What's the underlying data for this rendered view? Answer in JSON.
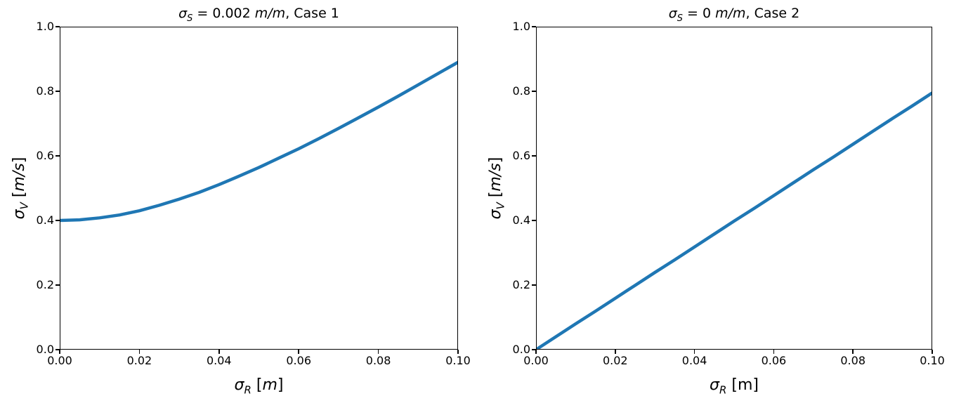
{
  "figure": {
    "background": "#ffffff",
    "axis_color": "#000000",
    "text_color": "#000000"
  },
  "chart_data": [
    {
      "type": "line",
      "title": "σ_S = 0.002 m/m, Case 1",
      "title_parts": [
        {
          "t": "σ",
          "i": true
        },
        {
          "t": "S",
          "i": true,
          "sub": true
        },
        {
          "t": " = 0.002 ",
          "i": false
        },
        {
          "t": "m/m",
          "i": true
        },
        {
          "t": ", Case 1",
          "i": false
        }
      ],
      "xlabel": "σ_R [m]",
      "xlabel_parts": [
        {
          "t": "σ",
          "i": true
        },
        {
          "t": "R",
          "i": true,
          "sub": true
        },
        {
          "t": " [",
          "i": false
        },
        {
          "t": "m",
          "i": true
        },
        {
          "t": "]",
          "i": false
        }
      ],
      "ylabel": "σ_V [m/s]",
      "ylabel_parts": [
        {
          "t": "σ",
          "i": true
        },
        {
          "t": "V",
          "i": true,
          "sub": true
        },
        {
          "t": " [",
          "i": false
        },
        {
          "t": "m/s",
          "i": true
        },
        {
          "t": "]",
          "i": false
        }
      ],
      "xlim": [
        0,
        0.1
      ],
      "ylim": [
        0,
        1.0
      ],
      "xticks": {
        "values": [
          0,
          0.02,
          0.04,
          0.06,
          0.08,
          0.1
        ],
        "labels": [
          "0.00",
          "0.02",
          "0.04",
          "0.06",
          "0.08",
          "0.10"
        ]
      },
      "yticks": {
        "values": [
          0,
          0.2,
          0.4,
          0.6,
          0.8,
          1.0
        ],
        "labels": [
          "0.0",
          "0.2",
          "0.4",
          "0.6",
          "0.8",
          "1.0"
        ]
      },
      "grid": false,
      "line_color": "#1f77b4",
      "line_width": 4.5,
      "x": [
        0,
        0.005,
        0.01,
        0.015,
        0.02,
        0.025,
        0.03,
        0.035,
        0.04,
        0.045,
        0.05,
        0.055,
        0.06,
        0.065,
        0.07,
        0.075,
        0.08,
        0.085,
        0.09,
        0.095,
        0.1
      ],
      "y": [
        0.4,
        0.402,
        0.408,
        0.417,
        0.43,
        0.447,
        0.466,
        0.487,
        0.511,
        0.537,
        0.564,
        0.593,
        0.622,
        0.653,
        0.685,
        0.718,
        0.751,
        0.785,
        0.82,
        0.855,
        0.89
      ]
    },
    {
      "type": "line",
      "title": "σ_S = 0 m/m, Case 2",
      "title_parts": [
        {
          "t": "σ",
          "i": true
        },
        {
          "t": "S",
          "i": true,
          "sub": true
        },
        {
          "t": " = 0 ",
          "i": false
        },
        {
          "t": "m/m",
          "i": true
        },
        {
          "t": ", Case 2",
          "i": false
        }
      ],
      "xlabel": "σ_R [m]",
      "xlabel_parts": [
        {
          "t": "σ",
          "i": true
        },
        {
          "t": "R",
          "i": true,
          "sub": true
        },
        {
          "t": " [m]",
          "i": false
        }
      ],
      "ylabel": "σ_V [m/s]",
      "ylabel_parts": [
        {
          "t": "σ",
          "i": true
        },
        {
          "t": "V",
          "i": true,
          "sub": true
        },
        {
          "t": " [",
          "i": false
        },
        {
          "t": "m/s",
          "i": true
        },
        {
          "t": "]",
          "i": false
        }
      ],
      "xlim": [
        0,
        0.1
      ],
      "ylim": [
        0,
        1.0
      ],
      "xticks": {
        "values": [
          0,
          0.02,
          0.04,
          0.06,
          0.08,
          0.1
        ],
        "labels": [
          "0.00",
          "0.02",
          "0.04",
          "0.06",
          "0.08",
          "0.10"
        ]
      },
      "yticks": {
        "values": [
          0,
          0.2,
          0.4,
          0.6,
          0.8,
          1.0
        ],
        "labels": [
          "0.0",
          "0.2",
          "0.4",
          "0.6",
          "0.8",
          "1.0"
        ]
      },
      "grid": false,
      "line_color": "#1f77b4",
      "line_width": 4.5,
      "x": [
        0,
        0.005,
        0.01,
        0.015,
        0.02,
        0.025,
        0.03,
        0.035,
        0.04,
        0.045,
        0.05,
        0.055,
        0.06,
        0.065,
        0.07,
        0.075,
        0.08,
        0.085,
        0.09,
        0.095,
        0.1
      ],
      "y": [
        0,
        0.04,
        0.08,
        0.119,
        0.159,
        0.199,
        0.239,
        0.278,
        0.318,
        0.358,
        0.398,
        0.437,
        0.477,
        0.517,
        0.557,
        0.596,
        0.636,
        0.676,
        0.716,
        0.755,
        0.795
      ]
    }
  ]
}
